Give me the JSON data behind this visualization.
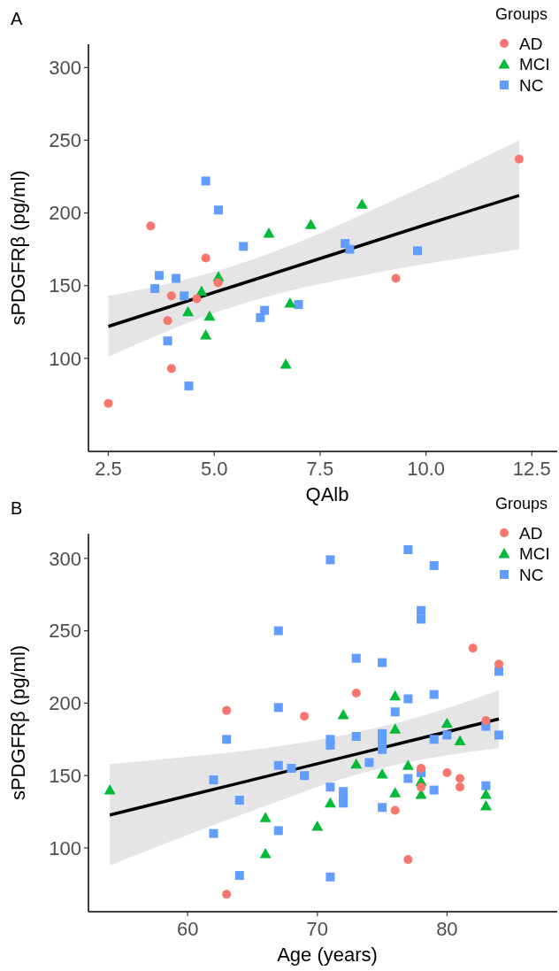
{
  "chart_data": [
    {
      "type": "scatter",
      "title": "A",
      "xlabel": "QAlb",
      "ylabel": "sPDGFRβ (pg/ml)",
      "legend_title": "Groups",
      "legend": "top right",
      "xlim": [
        2.03,
        13.1
      ],
      "xticks": [
        2.5,
        {
          "value": 5,
          "label": "5.0"
        },
        7.5,
        {
          "value": 10,
          "label": "10.0"
        },
        12.5
      ],
      "ylim": [
        36,
        316
      ],
      "yticks": [
        100,
        150,
        200,
        250,
        300
      ],
      "series": [
        {
          "name": "AD",
          "color": "#f8766d",
          "marker": "circle",
          "x": [
            3.5,
            4.8,
            5.09,
            3.99,
            4.59,
            3.9,
            3.99,
            2.5,
            9.29,
            12.2
          ],
          "values": [
            191,
            169,
            152,
            143,
            141,
            126,
            93,
            69,
            155,
            237
          ]
        },
        {
          "name": "MCI",
          "color": "#00ba38",
          "marker": "triangle",
          "x": [
            5.1,
            4.7,
            4.38,
            4.89,
            4.8,
            6.29,
            7.28,
            8.49,
            6.79,
            6.69
          ],
          "values": [
            156,
            146,
            132,
            129,
            116,
            186,
            192,
            206,
            138,
            96
          ]
        },
        {
          "name": "NC",
          "color": "#619cff",
          "marker": "square",
          "x": [
            4.8,
            5.1,
            5.69,
            3.7,
            4.1,
            3.6,
            4.29,
            3.9,
            4.4,
            6.19,
            6.09,
            6.99,
            8.09,
            8.2,
            9.8
          ],
          "values": [
            222,
            202,
            177,
            157,
            155,
            148,
            143,
            112,
            81,
            133,
            128,
            137,
            179,
            175,
            174
          ]
        },
        {
          "type": "line",
          "color": "#000000",
          "x": [
            2.5,
            4,
            5.5,
            7,
            8.5,
            10,
            12.2
          ],
          "values": [
            122,
            136,
            150,
            164,
            178,
            192,
            212
          ],
          "lower": [
            101,
            120,
            136,
            148,
            157,
            165,
            175
          ],
          "upper": [
            143,
            152,
            164,
            180,
            199,
            219,
            250
          ]
        }
      ]
    },
    {
      "type": "scatter",
      "title": "B",
      "xlabel": "Age (years)",
      "ylabel": "sPDGFRβ (pg/ml)",
      "legend_title": "Groups",
      "legend": "top right",
      "xlim": [
        52.35,
        88.5
      ],
      "xticks": [
        60,
        70,
        80
      ],
      "ylim": [
        56,
        317
      ],
      "yticks": [
        100,
        150,
        200,
        250,
        300
      ],
      "series": [
        {
          "name": "AD",
          "color": "#f8766d",
          "marker": "circle",
          "x": [
            63,
            69,
            63,
            82,
            84,
            73,
            83,
            78,
            80,
            81,
            81,
            78,
            76,
            77
          ],
          "values": [
            195,
            191,
            68,
            238,
            227,
            207,
            188,
            155,
            152,
            148,
            142,
            142,
            126,
            92
          ]
        },
        {
          "name": "MCI",
          "color": "#00ba38",
          "marker": "triangle",
          "x": [
            54,
            66,
            70,
            66,
            76,
            72,
            76,
            80,
            81,
            73,
            77,
            75,
            78,
            76,
            78,
            83,
            83,
            71
          ],
          "values": [
            140,
            121,
            115,
            96,
            205,
            192,
            182,
            186,
            174,
            158,
            157,
            151,
            146,
            138,
            137,
            137,
            129,
            131
          ]
        },
        {
          "name": "NC",
          "color": "#619cff",
          "marker": "square",
          "x": [
            67,
            67,
            63,
            67,
            68,
            69,
            62,
            64,
            62,
            67,
            64,
            71,
            77,
            79,
            78,
            78,
            84,
            73,
            75,
            77,
            79,
            76,
            71,
            71,
            73,
            75,
            75,
            75,
            83,
            79,
            80,
            84,
            74,
            78,
            77,
            79,
            83,
            71,
            72,
            72,
            72,
            75,
            71
          ],
          "values": [
            250,
            197,
            175,
            157,
            155,
            150,
            147,
            133,
            110,
            112,
            81,
            299,
            306,
            295,
            264,
            258,
            222,
            231,
            228,
            203,
            206,
            194,
            175,
            171,
            177,
            179,
            174,
            168,
            184,
            175,
            178,
            178,
            159,
            152,
            148,
            140,
            143,
            142,
            139,
            135,
            131,
            128,
            80
          ]
        },
        {
          "type": "line",
          "color": "#000000",
          "x": [
            54,
            60,
            66,
            72,
            78,
            84
          ],
          "values": [
            122.8,
            136.1,
            149.3,
            162.6,
            175.8,
            189.1
          ],
          "lower": [
            88,
            109,
            129,
            148,
            161,
            169
          ],
          "upper": [
            158,
            163,
            169,
            178,
            191,
            209
          ]
        }
      ]
    }
  ]
}
